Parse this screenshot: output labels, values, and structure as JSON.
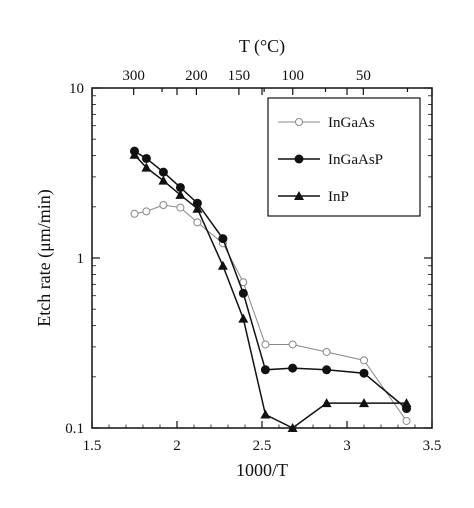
{
  "chart_data": {
    "type": "line",
    "xlabel": "1000/T",
    "ylabel": "Etch rate (μm/min)",
    "top_axis_label": "T (°C)",
    "xlim": [
      1.5,
      3.5
    ],
    "ylim": [
      0.1,
      10
    ],
    "yscale": "log",
    "grid": false,
    "legend_position": "top-right",
    "x_ticks": [
      1.5,
      2,
      2.5,
      3,
      3.5
    ],
    "x_tick_labels": [
      "1.5",
      "2",
      "2.5",
      "3",
      "3.5"
    ],
    "y_ticks": [
      0.1,
      1,
      10
    ],
    "y_tick_labels": [
      "0.1",
      "1",
      "10"
    ],
    "top_ticks": [
      300,
      250,
      200,
      150,
      125,
      100,
      75,
      50,
      25
    ],
    "top_tick_labels": [
      "300",
      "",
      "200",
      "150",
      "",
      "100",
      "",
      "50",
      ""
    ],
    "series": [
      {
        "name": "InGaAs",
        "marker": "open-circle",
        "color": "#888888",
        "x": [
          1.75,
          1.82,
          1.92,
          2.02,
          2.12,
          2.27,
          2.39,
          2.52,
          2.68,
          2.88,
          3.1,
          3.35
        ],
        "y": [
          1.82,
          1.88,
          2.05,
          1.98,
          1.62,
          1.22,
          0.72,
          0.31,
          0.31,
          0.28,
          0.25,
          0.11
        ]
      },
      {
        "name": "InGaAsP",
        "marker": "filled-circle",
        "color": "#111111",
        "x": [
          1.75,
          1.82,
          1.92,
          2.02,
          2.12,
          2.27,
          2.39,
          2.52,
          2.68,
          2.88,
          3.1,
          3.35
        ],
        "y": [
          4.25,
          3.85,
          3.2,
          2.6,
          2.1,
          1.3,
          0.62,
          0.22,
          0.225,
          0.22,
          0.21,
          0.13
        ]
      },
      {
        "name": "InP",
        "marker": "filled-triangle",
        "color": "#111111",
        "x": [
          1.75,
          1.82,
          1.92,
          2.02,
          2.12,
          2.27,
          2.39,
          2.52,
          2.68,
          2.88,
          3.1,
          3.35
        ],
        "y": [
          4.05,
          3.4,
          2.85,
          2.35,
          1.95,
          0.9,
          0.44,
          0.12,
          0.1,
          0.14,
          0.14,
          0.14
        ]
      }
    ]
  }
}
